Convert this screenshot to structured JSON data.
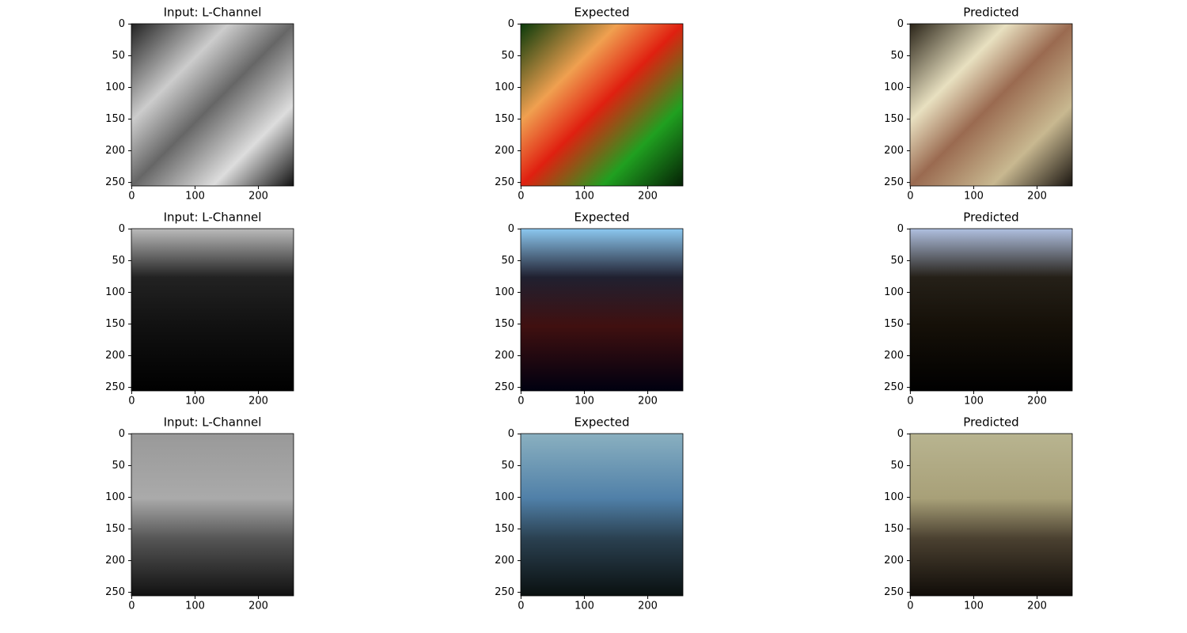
{
  "chart_data": [
    {
      "type": "image",
      "title": "Input: L-Channel",
      "xlim": [
        -0.5,
        255.5
      ],
      "ylim": [
        255.5,
        -0.5
      ],
      "xticks": [
        0,
        100,
        200
      ],
      "yticks": [
        0,
        50,
        100,
        150,
        200,
        250
      ]
    },
    {
      "type": "image",
      "title": "Expected",
      "xlim": [
        -0.5,
        255.5
      ],
      "ylim": [
        255.5,
        -0.5
      ],
      "xticks": [
        0,
        100,
        200
      ],
      "yticks": [
        0,
        50,
        100,
        150,
        200,
        250
      ]
    },
    {
      "type": "image",
      "title": "Predicted",
      "xlim": [
        -0.5,
        255.5
      ],
      "ylim": [
        255.5,
        -0.5
      ],
      "xticks": [
        0,
        100,
        200
      ],
      "yticks": [
        0,
        50,
        100,
        150,
        200,
        250
      ]
    },
    {
      "type": "image",
      "title": "Input: L-Channel",
      "xlim": [
        -0.5,
        255.5
      ],
      "ylim": [
        255.5,
        -0.5
      ],
      "xticks": [
        0,
        100,
        200
      ],
      "yticks": [
        0,
        50,
        100,
        150,
        200,
        250
      ]
    },
    {
      "type": "image",
      "title": "Expected",
      "xlim": [
        -0.5,
        255.5
      ],
      "ylim": [
        255.5,
        -0.5
      ],
      "xticks": [
        0,
        100,
        200
      ],
      "yticks": [
        0,
        50,
        100,
        150,
        200,
        250
      ]
    },
    {
      "type": "image",
      "title": "Predicted",
      "xlim": [
        -0.5,
        255.5
      ],
      "ylim": [
        255.5,
        -0.5
      ],
      "xticks": [
        0,
        100,
        200
      ],
      "yticks": [
        0,
        50,
        100,
        150,
        200,
        250
      ]
    },
    {
      "type": "image",
      "title": "Input: L-Channel",
      "xlim": [
        -0.5,
        255.5
      ],
      "ylim": [
        255.5,
        -0.5
      ],
      "xticks": [
        0,
        100,
        200
      ],
      "yticks": [
        0,
        50,
        100,
        150,
        200,
        250
      ]
    },
    {
      "type": "image",
      "title": "Expected",
      "xlim": [
        -0.5,
        255.5
      ],
      "ylim": [
        255.5,
        -0.5
      ],
      "xticks": [
        0,
        100,
        200
      ],
      "yticks": [
        0,
        50,
        100,
        150,
        200,
        250
      ]
    },
    {
      "type": "image",
      "title": "Predicted",
      "xlim": [
        -0.5,
        255.5
      ],
      "ylim": [
        255.5,
        -0.5
      ],
      "xticks": [
        0,
        100,
        200
      ],
      "yticks": [
        0,
        50,
        100,
        150,
        200,
        250
      ]
    }
  ]
}
